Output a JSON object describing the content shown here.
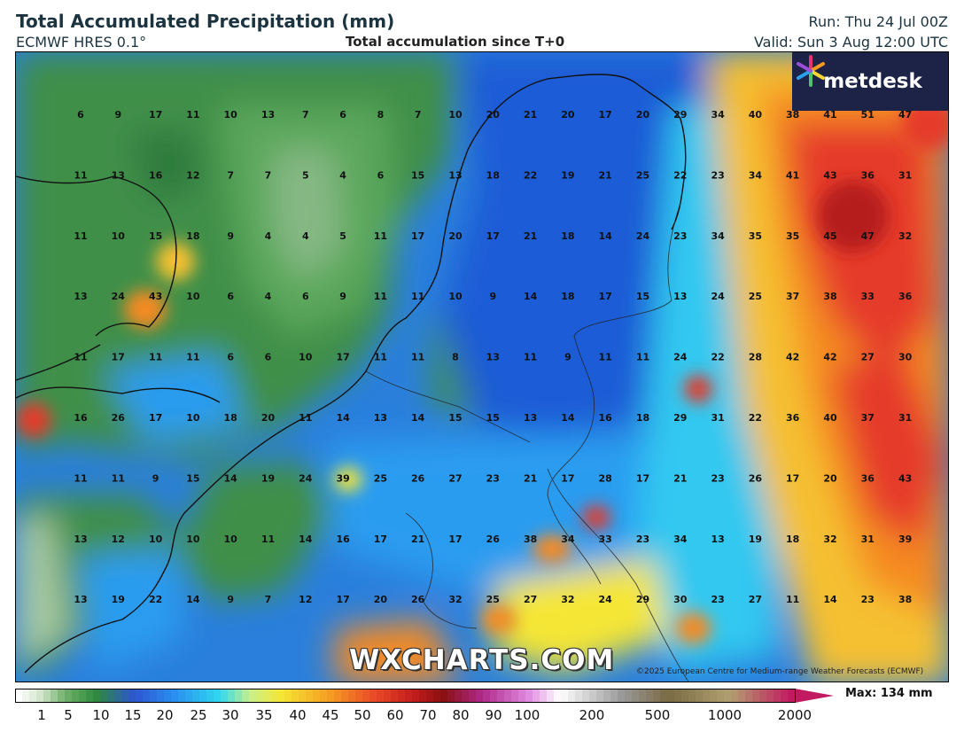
{
  "header": {
    "title": "Total Accumulated Precipitation (mm)",
    "model": "ECMWF HRES 0.1°",
    "subtitle": "Total accumulation since T+0",
    "run": "Run: Thu 24 Jul 00Z",
    "valid": "Valid: Sun 3 Aug 12:00 UTC"
  },
  "brand": {
    "logo_text": "metdesk",
    "watermark": "WXCHARTS.COM"
  },
  "copyright": "©2025 European Centre for Medium-range Weather Forecasts (ECMWF)",
  "legend": {
    "max_label": "Max: 134 mm",
    "ticks": [
      "1",
      "5",
      "10",
      "15",
      "20",
      "25",
      "30",
      "35",
      "40",
      "45",
      "50",
      "60",
      "70",
      "80",
      "90",
      "100",
      "200",
      "500",
      "1000",
      "2000"
    ]
  },
  "grid_values": [
    [
      "6",
      "9",
      "17",
      "11",
      "10",
      "13",
      "7",
      "6",
      "8",
      "7",
      "10",
      "20",
      "21",
      "20",
      "17",
      "20",
      "29",
      "34",
      "40",
      "38",
      "41",
      "51",
      "47"
    ],
    [
      "11",
      "13",
      "16",
      "12",
      "7",
      "7",
      "5",
      "4",
      "6",
      "15",
      "13",
      "18",
      "22",
      "19",
      "21",
      "25",
      "22",
      "23",
      "34",
      "41",
      "43",
      "36",
      "31"
    ],
    [
      "11",
      "10",
      "15",
      "18",
      "9",
      "4",
      "4",
      "5",
      "11",
      "17",
      "20",
      "17",
      "21",
      "18",
      "14",
      "24",
      "23",
      "34",
      "35",
      "35",
      "45",
      "47",
      "32"
    ],
    [
      "13",
      "24",
      "43",
      "10",
      "6",
      "4",
      "6",
      "9",
      "11",
      "11",
      "10",
      "9",
      "14",
      "18",
      "17",
      "15",
      "13",
      "24",
      "25",
      "37",
      "38",
      "33",
      "36"
    ],
    [
      "11",
      "17",
      "11",
      "11",
      "6",
      "6",
      "10",
      "17",
      "11",
      "11",
      "8",
      "13",
      "11",
      "9",
      "11",
      "11",
      "24",
      "22",
      "28",
      "42",
      "42",
      "27",
      "30"
    ],
    [
      "16",
      "26",
      "17",
      "10",
      "18",
      "20",
      "11",
      "14",
      "13",
      "14",
      "15",
      "15",
      "13",
      "14",
      "16",
      "18",
      "29",
      "31",
      "22",
      "36",
      "40",
      "37",
      "31"
    ],
    [
      "11",
      "11",
      "9",
      "15",
      "14",
      "19",
      "24",
      "39",
      "25",
      "26",
      "27",
      "23",
      "21",
      "17",
      "28",
      "17",
      "21",
      "23",
      "26",
      "17",
      "20",
      "36",
      "43"
    ],
    [
      "13",
      "12",
      "10",
      "10",
      "10",
      "11",
      "14",
      "16",
      "17",
      "21",
      "17",
      "26",
      "38",
      "34",
      "33",
      "23",
      "34",
      "13",
      "19",
      "18",
      "32",
      "31",
      "39"
    ],
    [
      "13",
      "19",
      "22",
      "14",
      "9",
      "7",
      "12",
      "17",
      "20",
      "26",
      "32",
      "25",
      "27",
      "32",
      "24",
      "29",
      "30",
      "23",
      "27",
      "11",
      "14",
      "23",
      "38"
    ]
  ],
  "colors": {
    "light": "#a8c9a3",
    "green": "#4f9a54",
    "dark_green": "#2f7a3c",
    "blue": "#1f5bd6",
    "light_blue": "#2a9cf0",
    "cyan": "#30d8f0",
    "yellow": "#f5e634",
    "orange": "#f59a22",
    "red": "#e53a2a",
    "dark_red": "#b51d1d"
  }
}
